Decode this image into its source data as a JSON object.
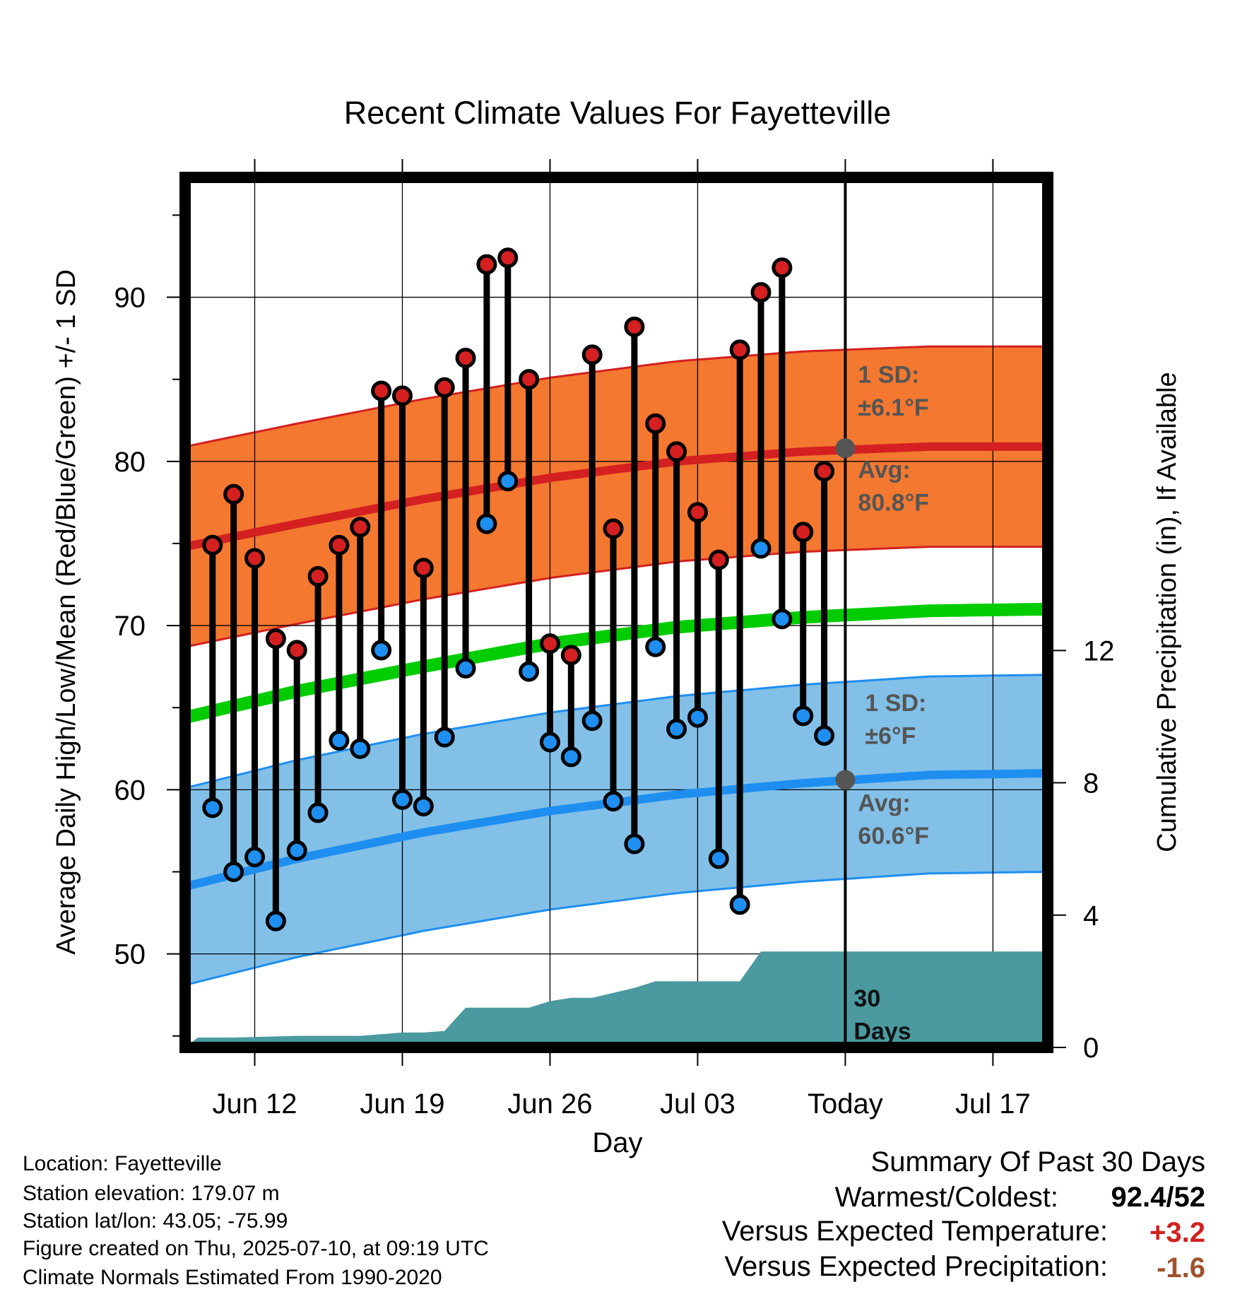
{
  "chart_data": {
    "type": "line",
    "title": "Recent Climate Values For Fayetteville",
    "xlabel": "Day",
    "ylabel": "Average Daily High/Low/Mean (Red/Blue/Green) +/- 1 SD",
    "y2label": "Cumulative Precipitation (in), If Available",
    "ylim": [
      44.3,
      97.3
    ],
    "y2lim": [
      0,
      26.3
    ],
    "yticks": [
      "50",
      "60",
      "70",
      "80",
      "90"
    ],
    "y2ticks": [
      "0",
      "4",
      "8",
      "12"
    ],
    "x_tick_labels": [
      "Jun 12",
      "Jun 19",
      "Jun 26",
      "Jul 03",
      "Today",
      "Jul 17"
    ],
    "x_tick_days": [
      12,
      19,
      26,
      33,
      40,
      47
    ],
    "x_range_days": [
      8.7,
      49.6
    ],
    "today_day": 40,
    "daily": {
      "days": [
        10,
        11,
        12,
        13,
        14,
        15,
        16,
        17,
        18,
        19,
        20,
        21,
        22,
        23,
        24,
        25,
        26,
        27,
        28,
        29,
        30,
        31,
        32,
        33,
        34,
        35,
        36,
        37,
        38,
        39
      ],
      "highs": [
        74.9,
        78.0,
        74.1,
        69.2,
        68.5,
        73.0,
        74.9,
        76.0,
        84.3,
        84.0,
        73.5,
        84.5,
        86.3,
        92.0,
        92.4,
        85.0,
        68.9,
        68.2,
        86.5,
        75.9,
        88.2,
        82.3,
        80.6,
        76.9,
        74.0,
        86.8,
        90.3,
        91.8,
        75.7,
        79.4
      ],
      "lows": [
        58.9,
        55.0,
        55.9,
        52.0,
        56.3,
        58.6,
        63.0,
        62.5,
        68.5,
        59.4,
        59.0,
        63.2,
        67.4,
        76.2,
        78.8,
        67.2,
        62.9,
        62.0,
        64.2,
        59.3,
        56.7,
        68.7,
        63.7,
        64.4,
        55.8,
        53.0,
        74.7,
        70.4,
        64.5,
        63.3
      ]
    },
    "normals": {
      "days": [
        8.7,
        14,
        20,
        26,
        32,
        38,
        44,
        49.6
      ],
      "avg_high": [
        74.8,
        76.2,
        77.7,
        79.0,
        80.0,
        80.6,
        80.9,
        80.9
      ],
      "avg_low": [
        54.1,
        55.8,
        57.4,
        58.7,
        59.7,
        60.4,
        60.9,
        61.0
      ],
      "avg_mean": [
        64.4,
        66.0,
        67.5,
        68.9,
        69.9,
        70.5,
        70.9,
        71.0
      ],
      "high_sd": 6.1,
      "low_sd": 6.0
    },
    "precip": {
      "days": [
        8.7,
        9.3,
        11,
        14,
        17,
        19,
        20,
        21,
        22,
        23,
        25,
        26,
        27,
        28,
        30,
        31,
        32,
        35,
        36,
        37,
        40,
        49.6
      ],
      "cum": [
        0.0,
        0.3,
        0.3,
        0.35,
        0.35,
        0.45,
        0.45,
        0.5,
        1.2,
        1.2,
        1.2,
        1.4,
        1.5,
        1.5,
        1.8,
        2.0,
        2.0,
        2.0,
        2.9,
        2.9,
        2.9,
        2.9
      ]
    },
    "colors": {
      "high": "#d42020",
      "high_band": "#f47830",
      "low": "#1e8ff0",
      "low_band": "#82c0e8",
      "mean": "#00cc00",
      "precip": "#4a9aa0",
      "today_marker": "#555555"
    },
    "annotations": {
      "high_sd_label": "1 SD:",
      "high_sd_value": "±6.1°F",
      "high_avg_label": "Avg:",
      "high_avg_value": "80.8°F",
      "low_sd_label": "1 SD:",
      "low_sd_value": "±6°F",
      "low_avg_label": "Avg:",
      "low_avg_value": "60.6°F",
      "precip_label_1": "30",
      "precip_label_2": "Days",
      "today_high_avg": 80.8,
      "today_low_avg": 60.6
    }
  },
  "info": {
    "location": "Location: Fayetteville",
    "elevation": "Station elevation: 179.07 m",
    "latlon": "Station lat/lon: 43.05; -75.99",
    "created": "Figure created on Thu, 2025-07-10, at 09:19 UTC",
    "normals": "Climate Normals Estimated From 1990-2020"
  },
  "summary": {
    "title": "Summary Of Past 30 Days",
    "warm_cold_label": "Warmest/Coldest:",
    "warm_cold_value": "92.4/52",
    "temp_label": "Versus Expected Temperature:",
    "temp_value": "+3.2",
    "temp_color": "#d42020",
    "precip_label": "Versus Expected Precipitation:",
    "precip_value": "-1.6",
    "precip_color": "#a0522d"
  }
}
